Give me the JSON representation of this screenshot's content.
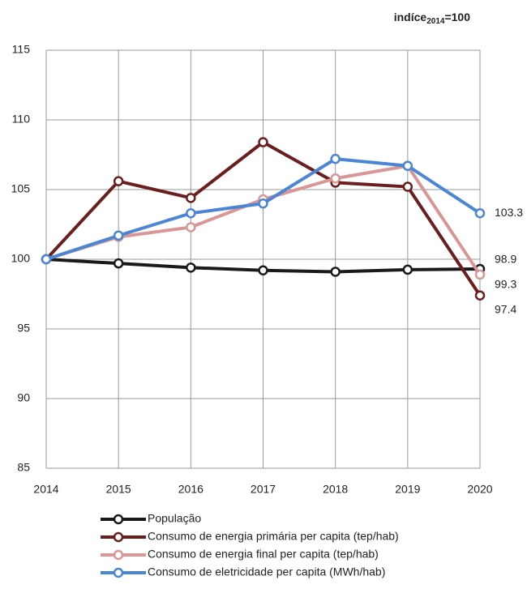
{
  "chart_data": {
    "type": "line",
    "annotation": {
      "text": "indíce",
      "subscript": "2014",
      "suffix": "=100"
    },
    "categories": [
      "2014",
      "2015",
      "2016",
      "2017",
      "2018",
      "2019",
      "2020"
    ],
    "series": [
      {
        "name": "População",
        "color": "#1a1a1a",
        "values": [
          100,
          99.7,
          99.4,
          99.2,
          99.1,
          99.25,
          99.3
        ]
      },
      {
        "name": "Consumo de energia primária per capita (tep/hab)",
        "color": "#6b1e1e",
        "values": [
          100,
          105.6,
          104.4,
          108.4,
          105.5,
          105.2,
          97.4
        ]
      },
      {
        "name": "Consumo de energia final per capita (tep/hab)",
        "color": "#d99694",
        "values": [
          100,
          101.6,
          102.3,
          104.3,
          105.8,
          106.7,
          98.9
        ]
      },
      {
        "name": "Consumo de eletricidade per capita (MWh/hab)",
        "color": "#4a86d4",
        "values": [
          100,
          101.7,
          103.3,
          104.0,
          107.2,
          106.7,
          103.3
        ]
      }
    ],
    "ylim": [
      85,
      115
    ],
    "yticks": [
      85,
      90,
      95,
      100,
      105,
      110,
      115
    ],
    "grid": true
  }
}
